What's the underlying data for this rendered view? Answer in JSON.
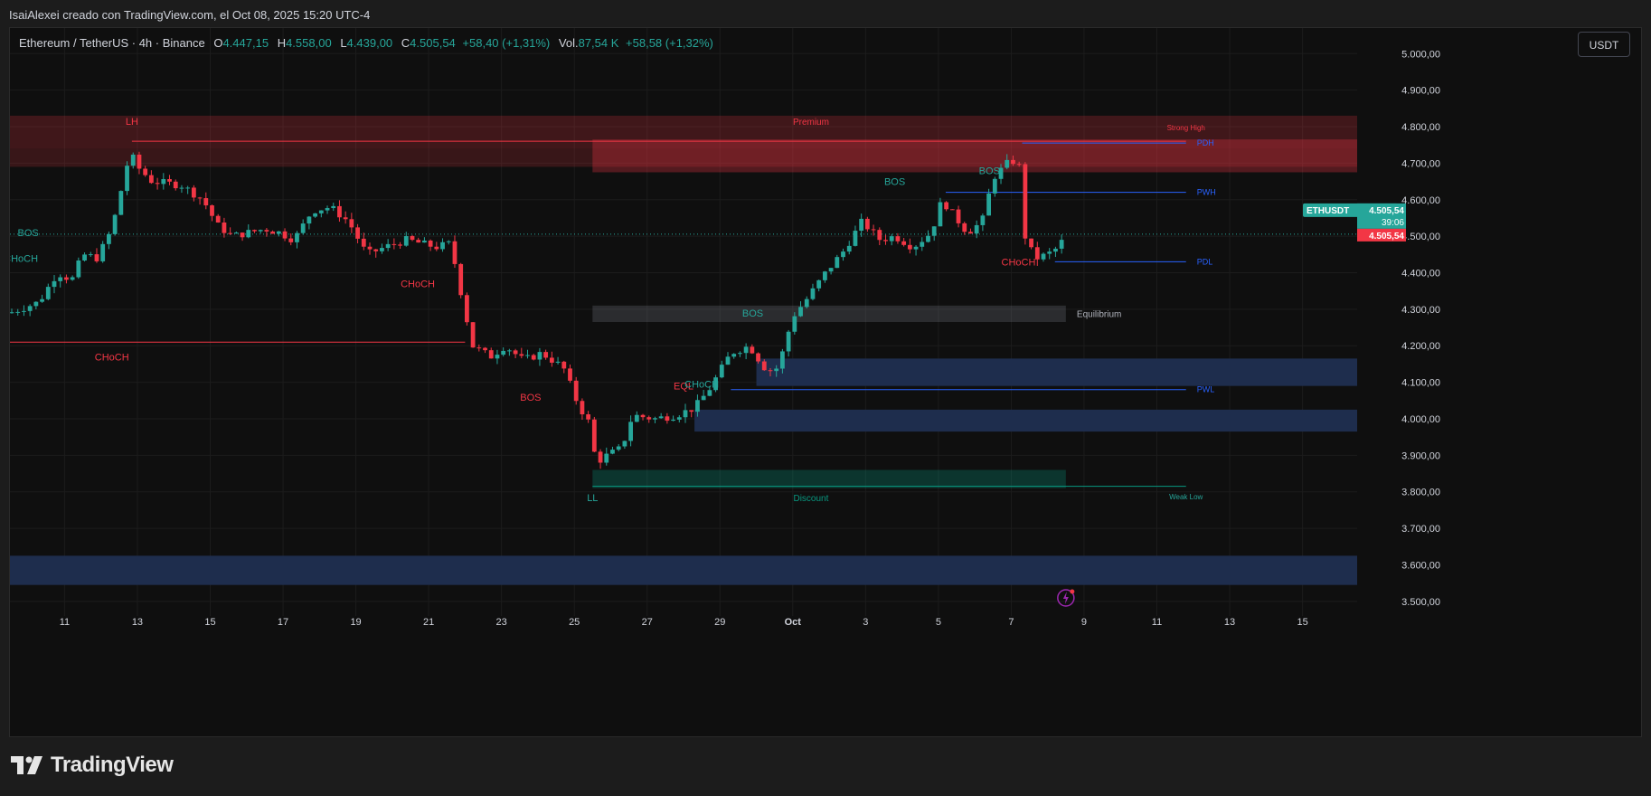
{
  "header": {
    "attribution": "IsaiAlexei creado con TradingView.com, el Oct 08, 2025 15:20 UTC-4"
  },
  "legend": {
    "symbol": "Ethereum / TetherUS · 4h · Binance",
    "open_label": "O",
    "open": "4.447,15",
    "high_label": "H",
    "high": "4.558,00",
    "low_label": "L",
    "low": "4.439,00",
    "close_label": "C",
    "close": "4.505,54",
    "change": "+58,40 (+1,31%)",
    "vol_label": "Vol.",
    "vol": "87,54 K",
    "vol_change": "+58,58 (+1,32%)"
  },
  "currency_button": "USDT",
  "footer": {
    "brand": "TradingView"
  },
  "colors": {
    "up": "#26a69a",
    "down": "#f23645",
    "premium": "#f23645",
    "discount": "#089981",
    "demand_zone": "#1e2d4d",
    "line_blue": "#2962ff",
    "background": "#0f0f0f"
  },
  "chart_data": {
    "type": "candlestick",
    "symbol": "ETHUSDT",
    "timeframe": "4h",
    "price_labels": {
      "symbol_tag": "ETHUSDT",
      "price": "4.505,54",
      "countdown": "39:06",
      "last_price": "4.505,54"
    },
    "ylim": [
      3460,
      5070
    ],
    "y_ticks": [
      3500,
      3600,
      3700,
      3800,
      3900,
      4000,
      4100,
      4200,
      4300,
      4400,
      4500,
      4600,
      4700,
      4800,
      4900,
      5000
    ],
    "y_tick_labels": [
      "3.500,00",
      "3.600,00",
      "3.700,00",
      "3.800,00",
      "3.900,00",
      "4.000,00",
      "4.100,00",
      "4.200,00",
      "4.300,00",
      "4.400,00",
      "4.500,00",
      "4.600,00",
      "4.700,00",
      "4.800,00",
      "4.900,00",
      "5.000,00"
    ],
    "x_ticks": [
      {
        "day": 11,
        "label": "11"
      },
      {
        "day": 13,
        "label": "13"
      },
      {
        "day": 15,
        "label": "15"
      },
      {
        "day": 17,
        "label": "17"
      },
      {
        "day": 19,
        "label": "19"
      },
      {
        "day": 21,
        "label": "21"
      },
      {
        "day": 23,
        "label": "23"
      },
      {
        "day": 25,
        "label": "25"
      },
      {
        "day": 27,
        "label": "27"
      },
      {
        "day": 29,
        "label": "29"
      },
      {
        "day": 31,
        "label": "Oct"
      },
      {
        "day": 33,
        "label": "3"
      },
      {
        "day": 35,
        "label": "5"
      },
      {
        "day": 37,
        "label": "7"
      },
      {
        "day": 39,
        "label": "9"
      },
      {
        "day": 41,
        "label": "11"
      },
      {
        "day": 43,
        "label": "13"
      },
      {
        "day": 45,
        "label": "15"
      }
    ],
    "xlim": [
      9.5,
      46.5
    ],
    "path_points": [
      [
        9.5,
        4290
      ],
      [
        10.3,
        4320
      ],
      [
        10.8,
        4400
      ],
      [
        11.2,
        4380
      ],
      [
        11.5,
        4450
      ],
      [
        11.9,
        4440
      ],
      [
        12.3,
        4520
      ],
      [
        12.8,
        4730
      ],
      [
        13.0,
        4690
      ],
      [
        13.4,
        4650
      ],
      [
        14.2,
        4640
      ],
      [
        14.8,
        4600
      ],
      [
        15.2,
        4530
      ],
      [
        15.6,
        4500
      ],
      [
        16.5,
        4520
      ],
      [
        16.9,
        4510
      ],
      [
        17.3,
        4490
      ],
      [
        17.8,
        4570
      ],
      [
        18.3,
        4580
      ],
      [
        18.8,
        4540
      ],
      [
        19.3,
        4450
      ],
      [
        19.8,
        4470
      ],
      [
        20.4,
        4490
      ],
      [
        21.2,
        4470
      ],
      [
        21.6,
        4480
      ],
      [
        21.9,
        4340
      ],
      [
        22.2,
        4200
      ],
      [
        22.7,
        4170
      ],
      [
        23.1,
        4200
      ],
      [
        23.6,
        4160
      ],
      [
        24.1,
        4180
      ],
      [
        24.7,
        4140
      ],
      [
        25.1,
        4040
      ],
      [
        25.4,
        3990
      ],
      [
        25.6,
        3880
      ],
      [
        25.9,
        3900
      ],
      [
        26.3,
        3920
      ],
      [
        26.6,
        4010
      ],
      [
        27.2,
        4000
      ],
      [
        27.8,
        4010
      ],
      [
        28.3,
        4030
      ],
      [
        28.7,
        4080
      ],
      [
        29.3,
        4180
      ],
      [
        29.8,
        4200
      ],
      [
        30.3,
        4130
      ],
      [
        30.6,
        4140
      ],
      [
        31.0,
        4280
      ],
      [
        31.4,
        4330
      ],
      [
        31.9,
        4400
      ],
      [
        32.4,
        4460
      ],
      [
        32.9,
        4540
      ],
      [
        33.4,
        4490
      ],
      [
        33.8,
        4500
      ],
      [
        34.3,
        4470
      ],
      [
        34.8,
        4510
      ],
      [
        35.1,
        4600
      ],
      [
        35.4,
        4560
      ],
      [
        35.8,
        4510
      ],
      [
        36.2,
        4540
      ],
      [
        36.5,
        4660
      ],
      [
        36.9,
        4700
      ],
      [
        37.2,
        4710
      ],
      [
        37.4,
        4480
      ],
      [
        37.7,
        4440
      ],
      [
        38.0,
        4450
      ],
      [
        38.3,
        4470
      ],
      [
        38.5,
        4505
      ]
    ],
    "candles_visible_last_close": 4505.54,
    "annotations": {
      "zones": [
        {
          "name": "Premium",
          "label": "Premium",
          "x1": 9.5,
          "x2": 46.5,
          "y1": 4740,
          "y2": 4830,
          "color": "premium-band"
        },
        {
          "name": "premium-inner",
          "label": "",
          "x1": 9.5,
          "x2": 46.5,
          "y1": 4690,
          "y2": 4740,
          "color": "premium-inner"
        },
        {
          "name": "supply-ob",
          "label": "",
          "x1": 25.5,
          "x2": 46.5,
          "y1": 4675,
          "y2": 4765,
          "color": "supply"
        },
        {
          "name": "Equilibrium",
          "label": "Equilibrium",
          "x1": 25.5,
          "x2": 38.5,
          "y1": 4265,
          "y2": 4310,
          "color": "eq"
        },
        {
          "name": "demand-1",
          "label": "",
          "x1": 30.0,
          "x2": 46.5,
          "y1": 4090,
          "y2": 4165,
          "color": "demand"
        },
        {
          "name": "demand-2",
          "label": "",
          "x1": 28.3,
          "x2": 46.5,
          "y1": 3965,
          "y2": 4025,
          "color": "demand"
        },
        {
          "name": "Discount",
          "label": "Discount",
          "x1": 25.5,
          "x2": 38.5,
          "y1": 3810,
          "y2": 3860,
          "color": "discount"
        },
        {
          "name": "demand-3",
          "label": "",
          "x1": 9.5,
          "x2": 46.5,
          "y1": 3545,
          "y2": 3625,
          "color": "demand"
        }
      ],
      "levels": [
        {
          "label": "PDH",
          "y": 4755,
          "x1": 37.3,
          "x2": 41.8
        },
        {
          "label": "PWH",
          "y": 4620,
          "x1": 35.2,
          "x2": 41.8
        },
        {
          "label": "PDL",
          "y": 4430,
          "x1": 38.2,
          "x2": 41.8
        },
        {
          "label": "PWL",
          "y": 4080,
          "x1": 29.3,
          "x2": 41.8
        }
      ],
      "texts": [
        {
          "text": "LH",
          "day": 12.85,
          "price": 4805,
          "color": "down"
        },
        {
          "text": "Strong High",
          "day": 41.8,
          "price": 4790,
          "color": "down"
        },
        {
          "text": "BOS",
          "day": 10.0,
          "price": 4500,
          "color": "up"
        },
        {
          "text": "CHoCH",
          "day": 9.8,
          "price": 4430,
          "color": "up"
        },
        {
          "text": "CHoCH",
          "day": 20.7,
          "price": 4360,
          "color": "down"
        },
        {
          "text": "CHoCH",
          "day": 12.3,
          "price": 4160,
          "color": "down"
        },
        {
          "text": "BOS",
          "day": 23.8,
          "price": 4050,
          "color": "down"
        },
        {
          "text": "EQL",
          "day": 28.0,
          "price": 4080,
          "color": "down"
        },
        {
          "text": "CHoCH",
          "day": 28.5,
          "price": 4085,
          "color": "up"
        },
        {
          "text": "BOS",
          "day": 29.9,
          "price": 4280,
          "color": "up"
        },
        {
          "text": "BOS",
          "day": 33.8,
          "price": 4640,
          "color": "up"
        },
        {
          "text": "BOS",
          "day": 36.4,
          "price": 4670,
          "color": "up"
        },
        {
          "text": "CHoCH",
          "day": 37.2,
          "price": 4420,
          "color": "down"
        },
        {
          "text": "LL",
          "day": 25.5,
          "price": 3775,
          "color": "up"
        },
        {
          "text": "Weak Low",
          "day": 41.8,
          "price": 3780,
          "color": "up"
        }
      ]
    }
  }
}
